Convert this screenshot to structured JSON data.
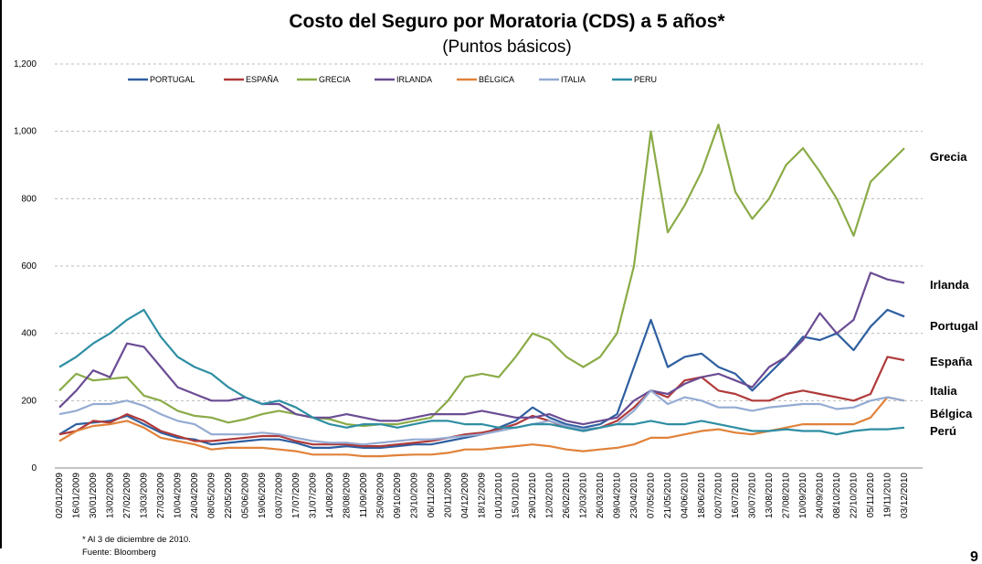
{
  "chart_data": {
    "type": "line",
    "title": "Costo del Seguro por Moratoria (CDS) a 5 años*",
    "subtitle": "(Puntos básicos)",
    "footnote": "* Al  3 de diciembre de  2010.",
    "source": "Fuente: Bloomberg",
    "page_number": "9",
    "categories": [
      "02/01/2009",
      "16/01/2009",
      "30/01/2009",
      "13/02/2009",
      "27/02/2009",
      "13/03/2009",
      "27/03/2009",
      "10/04/2009",
      "24/04/2009",
      "08/05/2009",
      "22/05/2009",
      "05/06/2009",
      "19/06/2009",
      "03/07/2009",
      "17/07/2009",
      "31/07/2009",
      "14/08/2009",
      "28/08/2009",
      "11/09/2009",
      "25/09/2009",
      "09/10/2009",
      "23/10/2009",
      "06/11/2009",
      "20/11/2009",
      "04/12/2009",
      "18/12/2009",
      "01/01/2010",
      "15/01/2010",
      "29/01/2010",
      "12/02/2010",
      "26/02/2010",
      "12/03/2010",
      "26/03/2010",
      "09/04/2010",
      "23/04/2010",
      "07/05/2010",
      "21/05/2010",
      "04/06/2010",
      "18/06/2010",
      "02/07/2010",
      "16/07/2010",
      "30/07/2010",
      "13/08/2010",
      "27/08/2010",
      "10/09/2010",
      "24/09/2010",
      "08/10/2010",
      "22/10/2010",
      "05/11/2010",
      "19/11/2010",
      "03/12/2010"
    ],
    "series": [
      {
        "name": "PORTUGAL",
        "color": "#2e5fa0",
        "values": [
          100,
          130,
          135,
          140,
          155,
          130,
          105,
          90,
          85,
          70,
          75,
          80,
          85,
          85,
          75,
          60,
          60,
          65,
          60,
          60,
          65,
          70,
          70,
          80,
          90,
          100,
          120,
          140,
          180,
          150,
          130,
          120,
          130,
          160,
          300,
          440,
          300,
          330,
          340,
          300,
          280,
          230,
          280,
          330,
          390,
          380,
          400,
          350,
          420,
          470,
          450
        ]
      },
      {
        "name": "ESPAÑA",
        "color": "#b03a3a",
        "values": [
          100,
          110,
          140,
          135,
          160,
          140,
          110,
          95,
          80,
          80,
          85,
          90,
          95,
          95,
          80,
          70,
          70,
          70,
          65,
          65,
          70,
          75,
          80,
          90,
          100,
          105,
          115,
          130,
          155,
          140,
          120,
          110,
          120,
          140,
          180,
          230,
          210,
          260,
          270,
          230,
          220,
          200,
          200,
          220,
          230,
          220,
          210,
          200,
          220,
          330,
          320
        ]
      },
      {
        "name": "GRECIA",
        "color": "#8aab47",
        "values": [
          230,
          280,
          260,
          265,
          270,
          215,
          200,
          170,
          155,
          150,
          135,
          145,
          160,
          170,
          160,
          150,
          145,
          130,
          125,
          130,
          130,
          140,
          150,
          200,
          270,
          280,
          270,
          330,
          400,
          380,
          330,
          300,
          330,
          400,
          600,
          1000,
          700,
          780,
          880,
          1020,
          820,
          740,
          800,
          900,
          950,
          880,
          800,
          690,
          850,
          900,
          950
        ]
      },
      {
        "name": "IRLANDA",
        "color": "#6a4c93",
        "values": [
          180,
          230,
          290,
          270,
          370,
          360,
          300,
          240,
          220,
          200,
          200,
          210,
          190,
          190,
          160,
          150,
          150,
          160,
          150,
          140,
          140,
          150,
          160,
          160,
          160,
          170,
          160,
          150,
          150,
          160,
          140,
          130,
          140,
          150,
          200,
          230,
          220,
          250,
          270,
          280,
          260,
          240,
          300,
          330,
          380,
          460,
          400,
          440,
          580,
          560,
          550
        ]
      },
      {
        "name": "BÉLGICA",
        "color": "#e0823a",
        "values": [
          80,
          110,
          125,
          130,
          140,
          120,
          90,
          80,
          70,
          55,
          60,
          60,
          60,
          55,
          50,
          40,
          40,
          40,
          35,
          35,
          38,
          40,
          40,
          45,
          55,
          55,
          60,
          65,
          70,
          65,
          55,
          50,
          55,
          60,
          70,
          90,
          90,
          100,
          110,
          115,
          105,
          100,
          110,
          120,
          130,
          130,
          130,
          130,
          150,
          210,
          200
        ]
      },
      {
        "name": "ITALIA",
        "color": "#94abd3",
        "values": [
          160,
          170,
          190,
          190,
          200,
          185,
          160,
          140,
          130,
          100,
          100,
          100,
          105,
          100,
          90,
          80,
          75,
          75,
          70,
          75,
          80,
          85,
          85,
          90,
          95,
          100,
          110,
          120,
          130,
          140,
          125,
          115,
          120,
          130,
          170,
          230,
          190,
          210,
          200,
          180,
          180,
          170,
          180,
          185,
          190,
          190,
          175,
          180,
          200,
          210,
          200
        ]
      },
      {
        "name": "PERU",
        "color": "#2e8ea3",
        "values": [
          300,
          330,
          370,
          400,
          440,
          470,
          390,
          330,
          300,
          280,
          240,
          210,
          190,
          200,
          180,
          150,
          130,
          120,
          130,
          130,
          120,
          130,
          140,
          140,
          130,
          130,
          120,
          120,
          130,
          130,
          120,
          110,
          120,
          130,
          130,
          140,
          130,
          130,
          140,
          130,
          120,
          110,
          110,
          115,
          110,
          110,
          100,
          110,
          115,
          115,
          120
        ]
      }
    ],
    "annotations": [
      "Grecia",
      "Irlanda",
      "Portugal",
      "España",
      "Italia",
      "Bélgica",
      "Perú"
    ],
    "ylim": [
      0,
      1200
    ],
    "yticks": [
      0,
      200,
      400,
      600,
      800,
      {
        "value": 1000,
        "label": "1,000"
      },
      {
        "value": 1200,
        "label": "1,200"
      }
    ],
    "grid": true
  }
}
